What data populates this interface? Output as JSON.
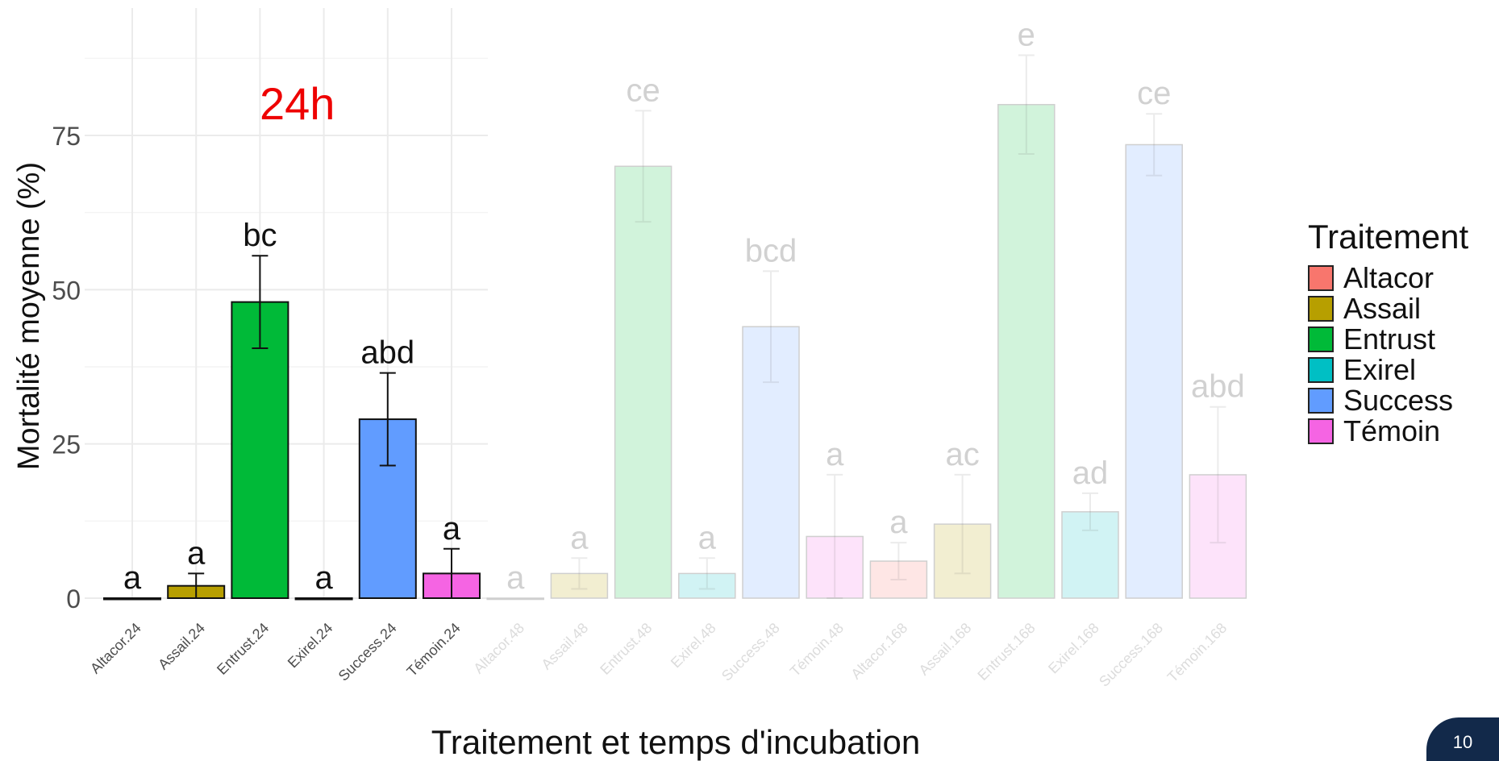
{
  "overlay_label": "24h",
  "page_number": "10",
  "chart_data": {
    "type": "bar",
    "xlabel": "Traitement et temps d'incubation",
    "ylabel": "Mortalité moyenne (%)",
    "ylim": [
      0,
      90
    ],
    "yticks": [
      0,
      25,
      50,
      75
    ],
    "grid": true,
    "legend": {
      "title": "Traitement",
      "position": "right",
      "entries": [
        {
          "name": "Altacor",
          "color": "#f8766d"
        },
        {
          "name": "Assail",
          "color": "#b79f00"
        },
        {
          "name": "Entrust",
          "color": "#00ba38"
        },
        {
          "name": "Exirel",
          "color": "#00bfc4"
        },
        {
          "name": "Success",
          "color": "#619cff"
        },
        {
          "name": "Témoin",
          "color": "#f564e3"
        }
      ]
    },
    "categories": [
      "Altacor.24",
      "Assail.24",
      "Entrust.24",
      "Exirel.24",
      "Success.24",
      "Témoin.24",
      "Altacor.48",
      "Assail.48",
      "Entrust.48",
      "Exirel.48",
      "Success.48",
      "Témoin.48",
      "Altacor.168",
      "Assail.168",
      "Entrust.168",
      "Exirel.168",
      "Success.168",
      "Témoin.168"
    ],
    "treatment": [
      "Altacor",
      "Assail",
      "Entrust",
      "Exirel",
      "Success",
      "Témoin",
      "Altacor",
      "Assail",
      "Entrust",
      "Exirel",
      "Success",
      "Témoin",
      "Altacor",
      "Assail",
      "Entrust",
      "Exirel",
      "Success",
      "Témoin"
    ],
    "values": [
      0,
      2,
      48,
      0,
      29,
      4,
      0,
      4,
      70,
      4,
      44,
      10,
      6,
      12,
      80,
      14,
      73.5,
      20
    ],
    "error_low": [
      0,
      0,
      40.5,
      0,
      21.5,
      0,
      0,
      1.5,
      61,
      1.5,
      35,
      0,
      3,
      4,
      72,
      11,
      68.5,
      9
    ],
    "error_high": [
      0,
      4,
      55.5,
      0,
      36.5,
      8,
      0,
      6.5,
      79,
      6.5,
      53,
      20,
      9,
      20,
      88,
      17,
      78.5,
      31
    ],
    "letters": [
      "a",
      "a",
      "bc",
      "a",
      "abd",
      "a",
      "a",
      "a",
      "ce",
      "a",
      "bcd",
      "a",
      "a",
      "ac",
      "e",
      "ad",
      "ce",
      "abd"
    ],
    "highlighted": [
      true,
      true,
      true,
      true,
      true,
      true,
      false,
      false,
      false,
      false,
      false,
      false,
      false,
      false,
      false,
      false,
      false,
      false
    ]
  }
}
